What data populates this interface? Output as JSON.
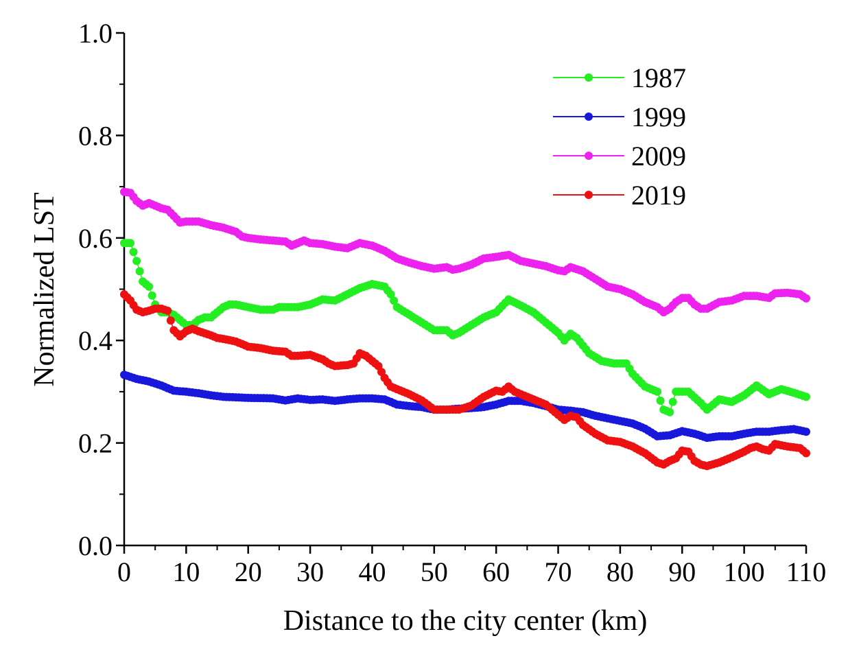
{
  "chart_data": {
    "type": "line",
    "title": "",
    "xlabel": "Distance to the city center (km)",
    "ylabel": "Normalized LST",
    "xlim": [
      0,
      110
    ],
    "ylim": [
      0.0,
      1.0
    ],
    "xticks": [
      0,
      10,
      20,
      30,
      40,
      50,
      60,
      70,
      80,
      90,
      100,
      110
    ],
    "yticks": [
      0.0,
      0.2,
      0.4,
      0.6,
      0.8,
      1.0
    ],
    "xtick_labels": [
      "0",
      "10",
      "20",
      "30",
      "40",
      "50",
      "60",
      "70",
      "80",
      "90",
      "100",
      "110"
    ],
    "ytick_labels": [
      "0.0",
      "0.2",
      "0.4",
      "0.6",
      "0.8",
      "1.0"
    ],
    "grid": false,
    "legend_position": "top-right",
    "marker": "circle",
    "series": [
      {
        "name": "1987",
        "color": "#22ee22",
        "keypoints": [
          [
            0,
            0.59
          ],
          [
            1,
            0.59
          ],
          [
            2,
            0.555
          ],
          [
            3,
            0.515
          ],
          [
            4,
            0.505
          ],
          [
            5,
            0.47
          ],
          [
            6,
            0.455
          ],
          [
            7,
            0.455
          ],
          [
            8,
            0.45
          ],
          [
            9,
            0.44
          ],
          [
            10,
            0.43
          ],
          [
            11,
            0.43
          ],
          [
            12,
            0.44
          ],
          [
            13,
            0.445
          ],
          [
            14,
            0.445
          ],
          [
            15,
            0.455
          ],
          [
            16,
            0.465
          ],
          [
            17,
            0.47
          ],
          [
            18,
            0.47
          ],
          [
            20,
            0.465
          ],
          [
            22,
            0.46
          ],
          [
            24,
            0.46
          ],
          [
            25,
            0.465
          ],
          [
            28,
            0.465
          ],
          [
            30,
            0.47
          ],
          [
            32,
            0.48
          ],
          [
            34,
            0.478
          ],
          [
            36,
            0.49
          ],
          [
            38,
            0.502
          ],
          [
            40,
            0.51
          ],
          [
            42,
            0.505
          ],
          [
            43,
            0.49
          ],
          [
            44,
            0.465
          ],
          [
            46,
            0.45
          ],
          [
            48,
            0.435
          ],
          [
            50,
            0.42
          ],
          [
            52,
            0.42
          ],
          [
            53,
            0.41
          ],
          [
            54,
            0.415
          ],
          [
            56,
            0.43
          ],
          [
            58,
            0.445
          ],
          [
            60,
            0.455
          ],
          [
            62,
            0.48
          ],
          [
            64,
            0.468
          ],
          [
            66,
            0.455
          ],
          [
            68,
            0.435
          ],
          [
            70,
            0.415
          ],
          [
            71,
            0.4
          ],
          [
            72,
            0.413
          ],
          [
            73,
            0.405
          ],
          [
            75,
            0.375
          ],
          [
            77,
            0.36
          ],
          [
            79,
            0.355
          ],
          [
            81,
            0.355
          ],
          [
            82,
            0.335
          ],
          [
            84,
            0.31
          ],
          [
            86,
            0.3
          ],
          [
            87,
            0.265
          ],
          [
            88,
            0.26
          ],
          [
            89,
            0.3
          ],
          [
            91,
            0.3
          ],
          [
            93,
            0.278
          ],
          [
            94,
            0.265
          ],
          [
            96,
            0.285
          ],
          [
            98,
            0.28
          ],
          [
            100,
            0.293
          ],
          [
            102,
            0.312
          ],
          [
            104,
            0.295
          ],
          [
            106,
            0.305
          ],
          [
            108,
            0.298
          ],
          [
            110,
            0.29
          ]
        ]
      },
      {
        "name": "1999",
        "color": "#1818dd",
        "keypoints": [
          [
            0,
            0.333
          ],
          [
            2,
            0.325
          ],
          [
            4,
            0.32
          ],
          [
            6,
            0.312
          ],
          [
            8,
            0.302
          ],
          [
            10,
            0.3
          ],
          [
            12,
            0.297
          ],
          [
            14,
            0.293
          ],
          [
            16,
            0.29
          ],
          [
            20,
            0.288
          ],
          [
            24,
            0.287
          ],
          [
            26,
            0.283
          ],
          [
            28,
            0.287
          ],
          [
            30,
            0.284
          ],
          [
            32,
            0.285
          ],
          [
            34,
            0.282
          ],
          [
            36,
            0.285
          ],
          [
            38,
            0.287
          ],
          [
            40,
            0.287
          ],
          [
            42,
            0.285
          ],
          [
            44,
            0.275
          ],
          [
            46,
            0.272
          ],
          [
            48,
            0.27
          ],
          [
            50,
            0.265
          ],
          [
            52,
            0.265
          ],
          [
            54,
            0.267
          ],
          [
            56,
            0.268
          ],
          [
            58,
            0.27
          ],
          [
            60,
            0.275
          ],
          [
            62,
            0.282
          ],
          [
            64,
            0.282
          ],
          [
            66,
            0.278
          ],
          [
            68,
            0.272
          ],
          [
            70,
            0.265
          ],
          [
            72,
            0.263
          ],
          [
            74,
            0.26
          ],
          [
            76,
            0.253
          ],
          [
            78,
            0.248
          ],
          [
            80,
            0.243
          ],
          [
            82,
            0.238
          ],
          [
            84,
            0.228
          ],
          [
            86,
            0.213
          ],
          [
            88,
            0.215
          ],
          [
            90,
            0.223
          ],
          [
            92,
            0.218
          ],
          [
            94,
            0.21
          ],
          [
            96,
            0.213
          ],
          [
            98,
            0.213
          ],
          [
            100,
            0.218
          ],
          [
            102,
            0.222
          ],
          [
            104,
            0.222
          ],
          [
            106,
            0.225
          ],
          [
            108,
            0.227
          ],
          [
            110,
            0.222
          ]
        ]
      },
      {
        "name": "2009",
        "color": "#ee22ee",
        "keypoints": [
          [
            0,
            0.69
          ],
          [
            1,
            0.688
          ],
          [
            2,
            0.672
          ],
          [
            3,
            0.663
          ],
          [
            4,
            0.668
          ],
          [
            5,
            0.663
          ],
          [
            6,
            0.658
          ],
          [
            7,
            0.655
          ],
          [
            8,
            0.643
          ],
          [
            9,
            0.63
          ],
          [
            10,
            0.632
          ],
          [
            12,
            0.632
          ],
          [
            14,
            0.625
          ],
          [
            16,
            0.62
          ],
          [
            18,
            0.612
          ],
          [
            19,
            0.603
          ],
          [
            20,
            0.6
          ],
          [
            22,
            0.597
          ],
          [
            24,
            0.595
          ],
          [
            26,
            0.593
          ],
          [
            27,
            0.585
          ],
          [
            28,
            0.59
          ],
          [
            29,
            0.595
          ],
          [
            30,
            0.59
          ],
          [
            32,
            0.588
          ],
          [
            34,
            0.583
          ],
          [
            36,
            0.58
          ],
          [
            38,
            0.59
          ],
          [
            40,
            0.585
          ],
          [
            42,
            0.575
          ],
          [
            44,
            0.56
          ],
          [
            46,
            0.552
          ],
          [
            48,
            0.545
          ],
          [
            50,
            0.54
          ],
          [
            52,
            0.543
          ],
          [
            53,
            0.538
          ],
          [
            54,
            0.54
          ],
          [
            56,
            0.548
          ],
          [
            58,
            0.56
          ],
          [
            60,
            0.563
          ],
          [
            62,
            0.567
          ],
          [
            64,
            0.555
          ],
          [
            66,
            0.55
          ],
          [
            68,
            0.545
          ],
          [
            70,
            0.537
          ],
          [
            71,
            0.535
          ],
          [
            72,
            0.543
          ],
          [
            74,
            0.535
          ],
          [
            76,
            0.52
          ],
          [
            78,
            0.505
          ],
          [
            80,
            0.5
          ],
          [
            82,
            0.49
          ],
          [
            84,
            0.475
          ],
          [
            86,
            0.465
          ],
          [
            87,
            0.455
          ],
          [
            88,
            0.462
          ],
          [
            89,
            0.475
          ],
          [
            90,
            0.483
          ],
          [
            91,
            0.483
          ],
          [
            92,
            0.47
          ],
          [
            93,
            0.462
          ],
          [
            94,
            0.462
          ],
          [
            96,
            0.475
          ],
          [
            98,
            0.478
          ],
          [
            100,
            0.487
          ],
          [
            102,
            0.487
          ],
          [
            104,
            0.483
          ],
          [
            105,
            0.492
          ],
          [
            107,
            0.493
          ],
          [
            109,
            0.49
          ],
          [
            110,
            0.482
          ]
        ]
      },
      {
        "name": "2019",
        "color": "#ee1111",
        "keypoints": [
          [
            0,
            0.49
          ],
          [
            1,
            0.478
          ],
          [
            2,
            0.46
          ],
          [
            3,
            0.455
          ],
          [
            4,
            0.458
          ],
          [
            5,
            0.462
          ],
          [
            6,
            0.462
          ],
          [
            7,
            0.458
          ],
          [
            8,
            0.42
          ],
          [
            9,
            0.408
          ],
          [
            10,
            0.418
          ],
          [
            11,
            0.423
          ],
          [
            12,
            0.418
          ],
          [
            14,
            0.41
          ],
          [
            15,
            0.405
          ],
          [
            16,
            0.403
          ],
          [
            18,
            0.398
          ],
          [
            20,
            0.388
          ],
          [
            22,
            0.385
          ],
          [
            24,
            0.38
          ],
          [
            26,
            0.378
          ],
          [
            27,
            0.37
          ],
          [
            28,
            0.37
          ],
          [
            30,
            0.372
          ],
          [
            32,
            0.363
          ],
          [
            33,
            0.355
          ],
          [
            34,
            0.35
          ],
          [
            36,
            0.352
          ],
          [
            37,
            0.355
          ],
          [
            38,
            0.375
          ],
          [
            39,
            0.37
          ],
          [
            40,
            0.36
          ],
          [
            41,
            0.35
          ],
          [
            42,
            0.327
          ],
          [
            43,
            0.31
          ],
          [
            44,
            0.305
          ],
          [
            46,
            0.295
          ],
          [
            48,
            0.283
          ],
          [
            50,
            0.265
          ],
          [
            52,
            0.265
          ],
          [
            54,
            0.265
          ],
          [
            56,
            0.273
          ],
          [
            58,
            0.29
          ],
          [
            60,
            0.302
          ],
          [
            61,
            0.3
          ],
          [
            62,
            0.31
          ],
          [
            63,
            0.3
          ],
          [
            64,
            0.295
          ],
          [
            66,
            0.285
          ],
          [
            68,
            0.275
          ],
          [
            70,
            0.255
          ],
          [
            71,
            0.245
          ],
          [
            72,
            0.253
          ],
          [
            73,
            0.25
          ],
          [
            74,
            0.235
          ],
          [
            76,
            0.218
          ],
          [
            78,
            0.205
          ],
          [
            80,
            0.202
          ],
          [
            82,
            0.193
          ],
          [
            84,
            0.18
          ],
          [
            86,
            0.162
          ],
          [
            87,
            0.158
          ],
          [
            88,
            0.165
          ],
          [
            89,
            0.17
          ],
          [
            90,
            0.185
          ],
          [
            91,
            0.183
          ],
          [
            92,
            0.165
          ],
          [
            93,
            0.158
          ],
          [
            94,
            0.155
          ],
          [
            96,
            0.162
          ],
          [
            98,
            0.172
          ],
          [
            100,
            0.183
          ],
          [
            101,
            0.19
          ],
          [
            102,
            0.193
          ],
          [
            103,
            0.188
          ],
          [
            104,
            0.185
          ],
          [
            105,
            0.198
          ],
          [
            107,
            0.193
          ],
          [
            109,
            0.19
          ],
          [
            110,
            0.18
          ]
        ]
      }
    ]
  }
}
